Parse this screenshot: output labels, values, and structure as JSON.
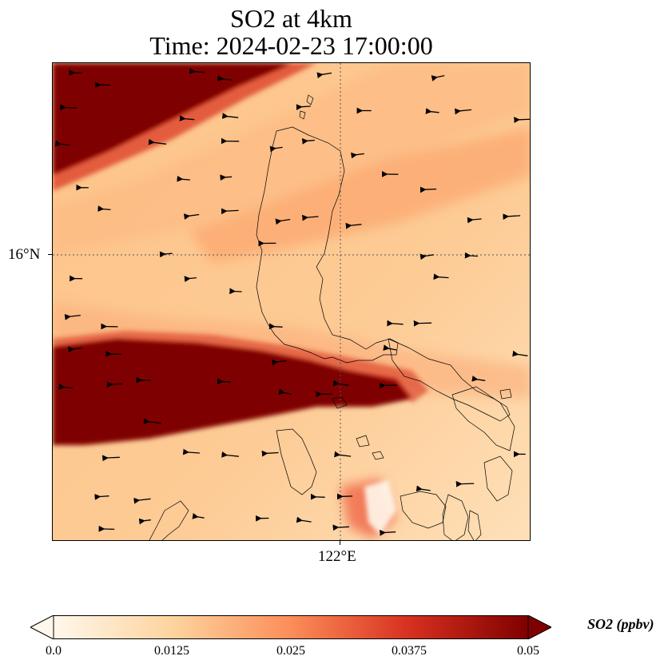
{
  "title": {
    "line1": "SO2 at 4km",
    "line2": "Time: 2024-02-23 17:00:00"
  },
  "map": {
    "lat_label": "16°N",
    "lon_label": "122°E",
    "gridlines": "dotted",
    "features": [
      "coastlines",
      "wind-vectors",
      "so2-concentration-field"
    ]
  },
  "colorbar": {
    "colormap": "OrRd",
    "ticks": [
      "0.0",
      "0.0125",
      "0.025",
      "0.0375",
      "0.05"
    ],
    "range": [
      0.0,
      0.05
    ],
    "extend": "both",
    "label": "SO2 (ppbv)",
    "colors": [
      "#fff7ec",
      "#fdd49e",
      "#fc8d59",
      "#d7301f",
      "#7f0000"
    ]
  }
}
